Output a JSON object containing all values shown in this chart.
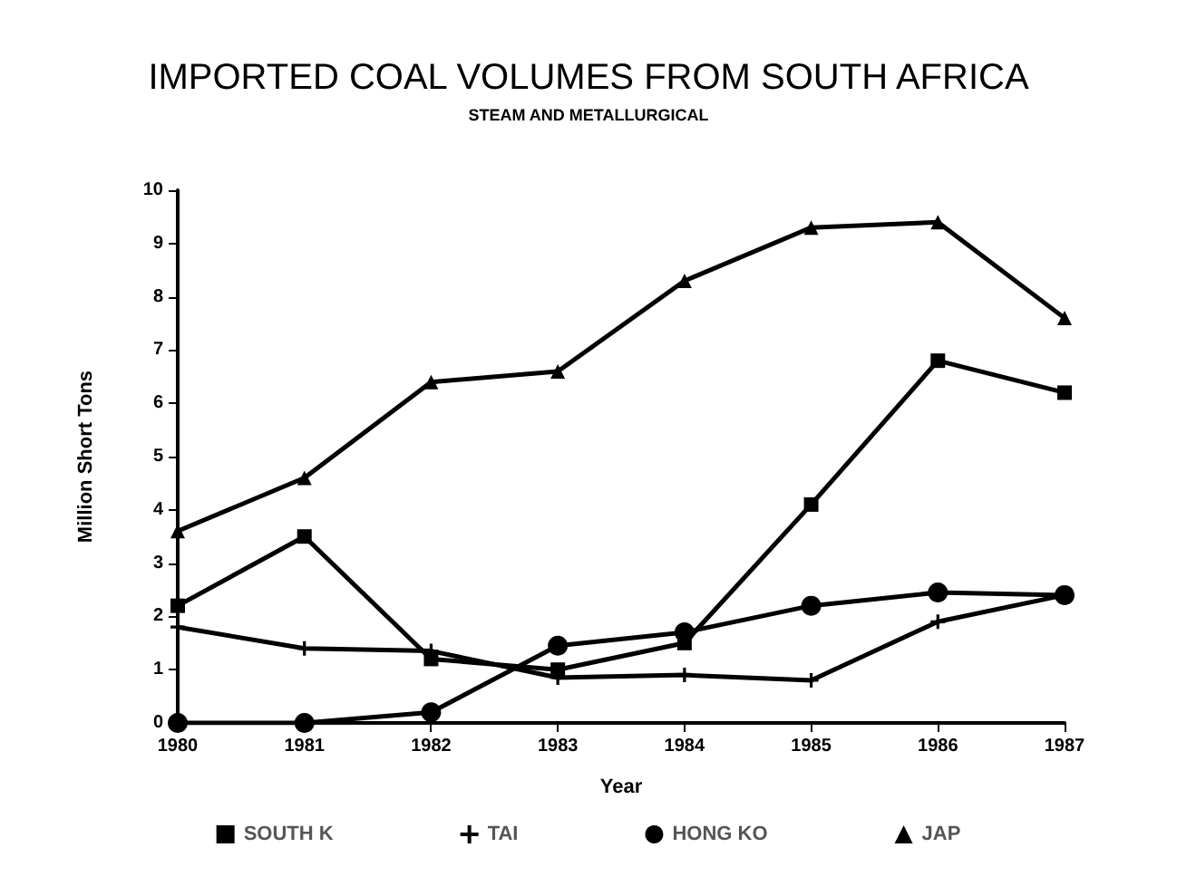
{
  "chart_data": {
    "type": "line",
    "title": "IMPORTED COAL VOLUMES FROM SOUTH AFRICA",
    "subtitle": "STEAM AND METALLURGICAL",
    "xlabel": "Year",
    "ylabel": "Million Short Tons",
    "categories": [
      "1980",
      "1981",
      "1982",
      "1983",
      "1984",
      "1985",
      "1986",
      "1987"
    ],
    "series": [
      {
        "name": "SOUTH K",
        "color": "#000000",
        "marker": "square",
        "values": [
          2.2,
          3.5,
          1.2,
          1.0,
          1.5,
          4.1,
          6.8,
          6.2
        ]
      },
      {
        "name": "TAI",
        "color": "#000000",
        "marker": "cross",
        "values": [
          1.8,
          1.4,
          1.35,
          0.85,
          0.9,
          0.8,
          1.9,
          2.4
        ]
      },
      {
        "name": "HONG KO",
        "color": "#000000",
        "marker": "circle",
        "values": [
          0,
          0,
          0.2,
          1.45,
          1.7,
          2.2,
          2.45,
          2.4
        ]
      },
      {
        "name": "JAP",
        "color": "#000000",
        "marker": "triangle",
        "values": [
          3.6,
          4.6,
          6.4,
          6.6,
          8.3,
          9.3,
          9.4,
          7.6
        ]
      }
    ],
    "ylim": [
      0,
      10
    ],
    "yticks": [
      0,
      1,
      2,
      3,
      4,
      5,
      6,
      7,
      8,
      9,
      10
    ],
    "grid": false,
    "legend": "bottom",
    "line_style": "solid"
  }
}
